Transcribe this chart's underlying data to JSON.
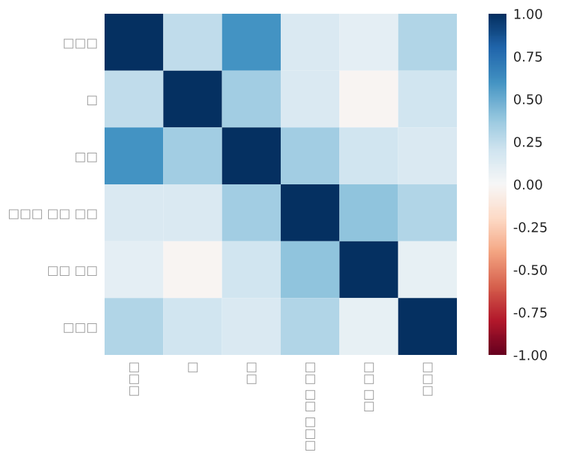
{
  "chart_data": {
    "type": "heatmap",
    "categories": [
      "□□□",
      "□",
      "□□",
      "□□□ □□ □□",
      "□□ □□",
      "□□□"
    ],
    "y_categories": [
      "□□□",
      "□",
      "□□",
      "□□□ □□ □□",
      "□□ □□",
      "□□□"
    ],
    "cells": [
      [
        1,
        0.25,
        0.6,
        0.15,
        0.1,
        0.3
      ],
      [
        0.25,
        1,
        0.35,
        0.15,
        -0.02,
        0.2
      ],
      [
        0.6,
        0.35,
        1,
        0.35,
        0.2,
        0.15
      ],
      [
        0.15,
        0.15,
        0.35,
        1,
        0.4,
        0.3
      ],
      [
        0.1,
        -0.02,
        0.2,
        0.4,
        1,
        0.08
      ],
      [
        0.3,
        0.2,
        0.15,
        0.3,
        0.08,
        1
      ]
    ],
    "clim": [
      -1,
      1
    ],
    "cticks": [
      {
        "value": -1,
        "label": "-1.00"
      },
      {
        "value": -0.75,
        "label": "-0.75"
      },
      {
        "value": -0.5,
        "label": "-0.50"
      },
      {
        "value": -0.25,
        "label": "-0.25"
      },
      {
        "value": 0,
        "label": "0.00"
      },
      {
        "value": 0.25,
        "label": "0.25"
      },
      {
        "value": 0.5,
        "label": "0.50"
      },
      {
        "value": 0.75,
        "label": "0.75"
      },
      {
        "value": 1,
        "label": "1.00"
      }
    ]
  }
}
